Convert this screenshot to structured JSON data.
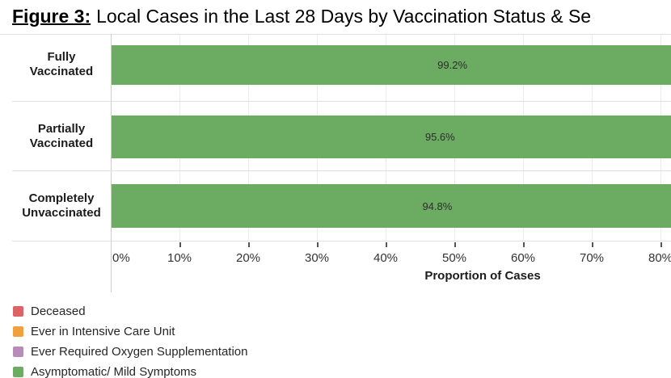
{
  "title": {
    "figure_label": "Figure 3:",
    "text": "Local Cases in the Last 28 Days by Vaccination Status & Se"
  },
  "chart_data": {
    "type": "bar",
    "orientation": "horizontal",
    "stacked": true,
    "title": "Figure 3: Local Cases in the Last 28 Days by Vaccination Status & Se",
    "categories": [
      "Fully Vaccinated",
      "Partially Vaccinated",
      "Completely Unvaccinated"
    ],
    "category_lines": [
      [
        "Fully",
        "Vaccinated"
      ],
      [
        "Partially",
        "Vaccinated"
      ],
      [
        "Completely",
        "Unvaccinated"
      ]
    ],
    "series": [
      {
        "name": "Asymptomatic/ Mild Symptoms",
        "values": [
          99.2,
          95.6,
          94.8
        ],
        "color": "#6cab62"
      }
    ],
    "bar_labels": [
      "99.2%",
      "95.6%",
      "94.8%"
    ],
    "xlabel": "Proportion of Cases",
    "xlim": [
      0,
      100
    ],
    "x_ticks": [
      0,
      10,
      20,
      30,
      40,
      50,
      60,
      70,
      80
    ],
    "x_tick_labels": [
      "0%",
      "10%",
      "20%",
      "30%",
      "40%",
      "50%",
      "60%",
      "70%",
      "80%"
    ],
    "grid": "vertical-light",
    "legend_position": "bottom-left",
    "legend": [
      {
        "label": "Deceased",
        "color": "#dc6464"
      },
      {
        "label": "Ever in Intensive Care Unit",
        "color": "#f0a03c"
      },
      {
        "label": "Ever Required Oxygen Supplementation",
        "color": "#b78cb8"
      },
      {
        "label": "Asymptomatic/ Mild Symptoms",
        "color": "#6cab62"
      }
    ]
  }
}
